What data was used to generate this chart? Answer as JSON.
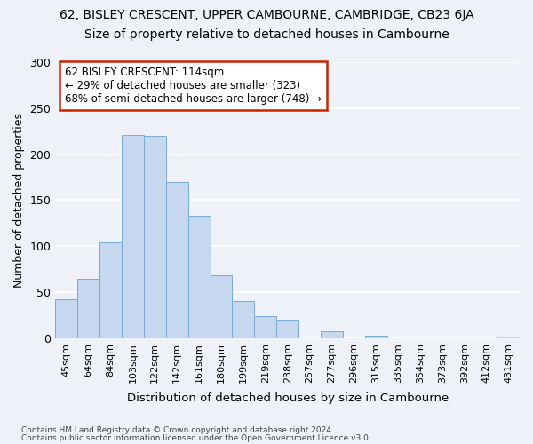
{
  "title1": "62, BISLEY CRESCENT, UPPER CAMBOURNE, CAMBRIDGE, CB23 6JA",
  "title2": "Size of property relative to detached houses in Cambourne",
  "xlabel": "Distribution of detached houses by size in Cambourne",
  "ylabel": "Number of detached properties",
  "categories": [
    "45sqm",
    "64sqm",
    "84sqm",
    "103sqm",
    "122sqm",
    "142sqm",
    "161sqm",
    "180sqm",
    "199sqm",
    "219sqm",
    "238sqm",
    "257sqm",
    "277sqm",
    "296sqm",
    "315sqm",
    "335sqm",
    "354sqm",
    "373sqm",
    "392sqm",
    "412sqm",
    "431sqm"
  ],
  "values": [
    42,
    65,
    104,
    221,
    220,
    170,
    133,
    68,
    40,
    24,
    20,
    0,
    8,
    0,
    3,
    0,
    0,
    0,
    0,
    0,
    2
  ],
  "bar_color": "#c5d8ef",
  "bar_edge_color": "#7aadd4",
  "annotation_text": "62 BISLEY CRESCENT: 114sqm\n← 29% of detached houses are smaller (323)\n68% of semi-detached houses are larger (748) →",
  "annotation_box_facecolor": "#ffffff",
  "annotation_box_edgecolor": "#cc2200",
  "footer1": "Contains HM Land Registry data © Crown copyright and database right 2024.",
  "footer2": "Contains public sector information licensed under the Open Government Licence v3.0.",
  "ylim": [
    0,
    300
  ],
  "background_color": "#eef2f8",
  "grid_color": "#ffffff",
  "title1_fontsize": 10,
  "title2_fontsize": 10,
  "tick_fontsize": 8,
  "ylabel_fontsize": 9,
  "xlabel_fontsize": 9.5,
  "footer_fontsize": 6.5,
  "ann_fontsize": 8.5
}
